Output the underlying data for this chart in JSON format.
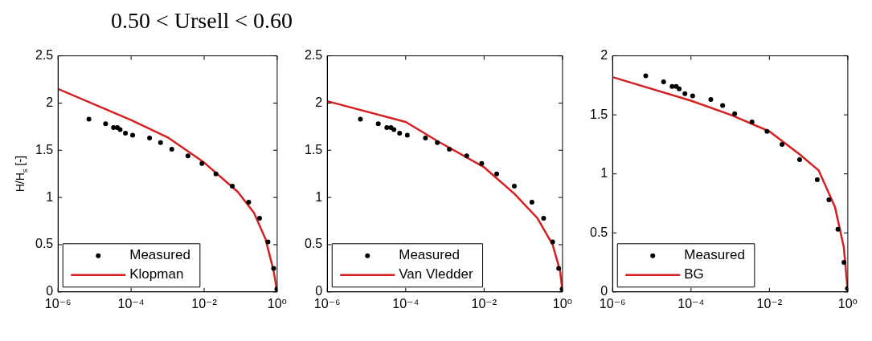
{
  "chart_data": [
    {
      "type": "line",
      "title": "0.50 < Ursell < 0.60",
      "ylabel": "H/H$_{s}$ [-]",
      "log": "x",
      "xlim": [
        1e-06,
        1
      ],
      "xticks": [
        {
          "value": 1e-06,
          "label": "10⁻⁶"
        },
        {
          "value": 0.0001,
          "label": "10⁻⁴"
        },
        {
          "value": 0.01,
          "label": "10⁻²"
        },
        {
          "value": 1,
          "label": "10⁰"
        }
      ],
      "ylim": [
        0,
        2.5
      ],
      "yticks": [
        0,
        0.5,
        1,
        1.5,
        2,
        2.5
      ],
      "grid": false,
      "legend": "bottom left",
      "series": [
        {
          "name": "Measured",
          "type": "scatter",
          "marker": "circle",
          "color": "#000000",
          "x": [
            7e-06,
            2e-05,
            3.3e-05,
            4.2e-05,
            5e-05,
            7e-05,
            0.00011,
            0.00032,
            0.00064,
            0.0013,
            0.0036,
            0.0087,
            0.021,
            0.059,
            0.166,
            0.33,
            0.56,
            0.8,
            0.98
          ],
          "values": [
            1.83,
            1.78,
            1.74,
            1.74,
            1.72,
            1.68,
            1.66,
            1.63,
            1.58,
            1.51,
            1.44,
            1.36,
            1.25,
            1.12,
            0.95,
            0.78,
            0.53,
            0.25,
            0.03
          ]
        },
        {
          "name": "Klopman",
          "type": "line",
          "color": "#d42020",
          "x": [
            1e-06,
            0.0001,
            0.00107,
            0.01,
            0.083,
            0.23,
            0.48,
            0.8,
            1
          ],
          "values": [
            2.15,
            1.82,
            1.63,
            1.37,
            1.06,
            0.84,
            0.56,
            0.22,
            0
          ]
        }
      ]
    },
    {
      "type": "line",
      "log": "x",
      "xlim": [
        1e-06,
        1
      ],
      "xticks": [
        {
          "value": 1e-06,
          "label": "10⁻⁶"
        },
        {
          "value": 0.0001,
          "label": "10⁻⁴"
        },
        {
          "value": 0.01,
          "label": "10⁻²"
        },
        {
          "value": 1,
          "label": "10⁰"
        }
      ],
      "ylim": [
        0,
        2.5
      ],
      "yticks": [
        0,
        0.5,
        1,
        1.5,
        2,
        2.5
      ],
      "grid": false,
      "legend": "bottom left",
      "series": [
        {
          "name": "Measured",
          "type": "scatter",
          "marker": "circle",
          "color": "#000000",
          "x": [
            7e-06,
            2e-05,
            3.3e-05,
            4.2e-05,
            5e-05,
            7e-05,
            0.00011,
            0.00032,
            0.00064,
            0.0013,
            0.0036,
            0.0087,
            0.021,
            0.059,
            0.166,
            0.33,
            0.56,
            0.8,
            0.98
          ],
          "values": [
            1.83,
            1.78,
            1.74,
            1.74,
            1.72,
            1.68,
            1.66,
            1.63,
            1.58,
            1.51,
            1.44,
            1.36,
            1.25,
            1.12,
            0.95,
            0.78,
            0.53,
            0.25,
            0.03
          ]
        },
        {
          "name": "Van Vledder",
          "type": "line",
          "color": "#d42020",
          "x": [
            1e-06,
            0.0001,
            0.00063,
            0.01,
            0.059,
            0.23,
            0.56,
            0.87,
            1
          ],
          "values": [
            2.02,
            1.8,
            1.6,
            1.32,
            1.04,
            0.78,
            0.5,
            0.22,
            0
          ]
        }
      ]
    },
    {
      "type": "line",
      "log": "x",
      "xlim": [
        1e-06,
        1
      ],
      "xticks": [
        {
          "value": 1e-06,
          "label": "10⁻⁶"
        },
        {
          "value": 0.0001,
          "label": "10⁻⁴"
        },
        {
          "value": 0.01,
          "label": "10⁻²"
        },
        {
          "value": 1,
          "label": "10⁰"
        }
      ],
      "ylim": [
        0,
        2
      ],
      "yticks": [
        0,
        0.5,
        1,
        1.5,
        2
      ],
      "grid": false,
      "legend": "bottom left",
      "series": [
        {
          "name": "Measured",
          "type": "scatter",
          "marker": "circle",
          "color": "#000000",
          "x": [
            7e-06,
            2e-05,
            3.3e-05,
            4.2e-05,
            5e-05,
            7e-05,
            0.00011,
            0.00032,
            0.00064,
            0.0013,
            0.0036,
            0.0087,
            0.021,
            0.059,
            0.166,
            0.33,
            0.56,
            0.8,
            0.98
          ],
          "values": [
            1.83,
            1.78,
            1.74,
            1.74,
            1.72,
            1.68,
            1.66,
            1.63,
            1.58,
            1.51,
            1.44,
            1.36,
            1.25,
            1.12,
            0.95,
            0.78,
            0.53,
            0.25,
            0.03
          ]
        },
        {
          "name": "BG",
          "type": "line",
          "color": "#d42020",
          "x": [
            1e-06,
            0.0001,
            0.00103,
            0.01,
            0.057,
            0.18,
            0.47,
            0.79,
            1
          ],
          "values": [
            1.82,
            1.62,
            1.5,
            1.36,
            1.17,
            1.03,
            0.72,
            0.38,
            0
          ]
        }
      ]
    }
  ]
}
